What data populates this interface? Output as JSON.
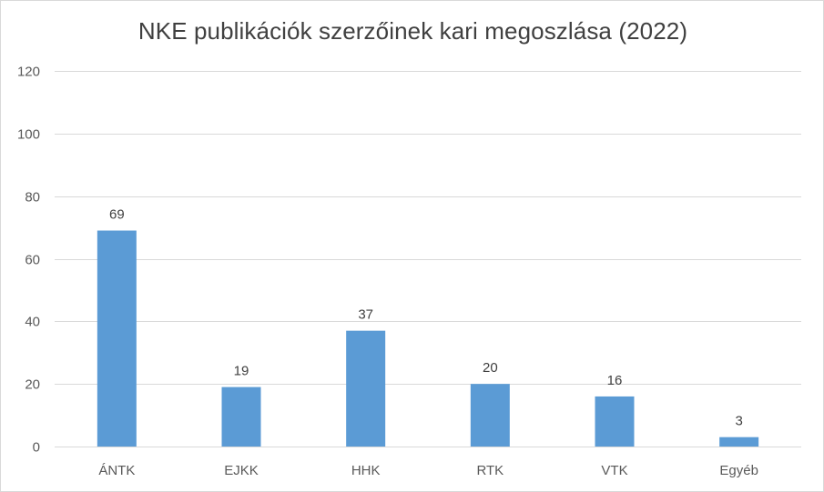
{
  "chart_data": {
    "type": "bar",
    "title": "NKE publikációk szerzőinek kari megoszlása (2022)",
    "xlabel": "",
    "ylabel": "",
    "categories": [
      "ÁNTK",
      "EJKK",
      "HHK",
      "RTK",
      "VTK",
      "Egyéb"
    ],
    "values": [
      69,
      19,
      37,
      20,
      16,
      3
    ],
    "ylim": [
      0,
      120
    ],
    "yticks": [
      0,
      20,
      40,
      60,
      80,
      100,
      120
    ],
    "grid": true,
    "legend": "none",
    "bar_color": "#5b9bd5",
    "grid_color": "#d9d9d9"
  }
}
